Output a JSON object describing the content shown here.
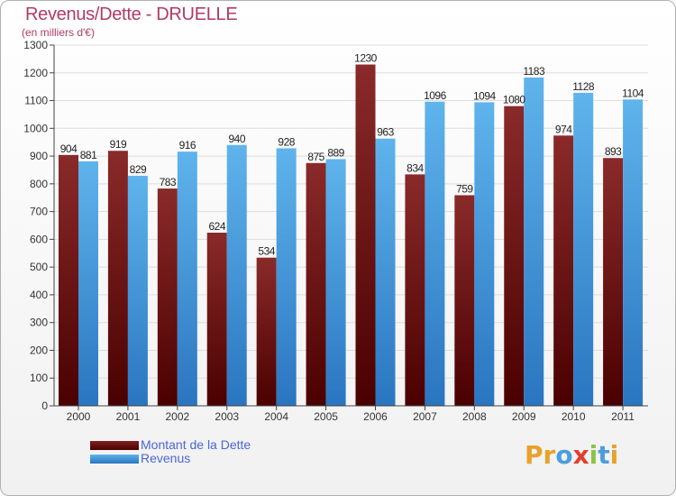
{
  "title": "Revenus/Dette - DRUELLE",
  "subtitle": "(en milliers d'€)",
  "logo": {
    "text": "Proxiti",
    "letters": [
      "P",
      "r",
      "o",
      "x",
      "i",
      "t",
      "i"
    ]
  },
  "colors": {
    "dette": "#7f2020",
    "dette_dark": "#520000",
    "revenus": "#58ade8",
    "revenus_dark": "#2f79c2",
    "axis": "#444444",
    "grid": "#dddddd",
    "logo": [
      "#e8a22c",
      "#e8a22c",
      "#4a9de0",
      "#e2402d",
      "#8bc34a",
      "#4a9de0",
      "#e8a22c"
    ]
  },
  "chart_data": {
    "type": "bar",
    "title": "Revenus/Dette - DRUELLE",
    "ylabel": "(en milliers d'€)",
    "xlabel": "",
    "categories": [
      "2000",
      "2001",
      "2002",
      "2003",
      "2004",
      "2005",
      "2006",
      "2007",
      "2008",
      "2009",
      "2010",
      "2011"
    ],
    "series": [
      {
        "name": "Montant de la Dette",
        "values": [
          904,
          919,
          783,
          624,
          534,
          875,
          1230,
          834,
          759,
          1080,
          974,
          893
        ]
      },
      {
        "name": "Revenus",
        "values": [
          881,
          829,
          916,
          940,
          928,
          889,
          963,
          1096,
          1094,
          1183,
          1128,
          1104
        ]
      }
    ],
    "ylim": [
      0,
      1300
    ],
    "yticks": [
      0,
      100,
      200,
      300,
      400,
      500,
      600,
      700,
      800,
      900,
      1000,
      1100,
      1200,
      1300
    ],
    "grid": true,
    "legend_position": "bottom-left"
  }
}
